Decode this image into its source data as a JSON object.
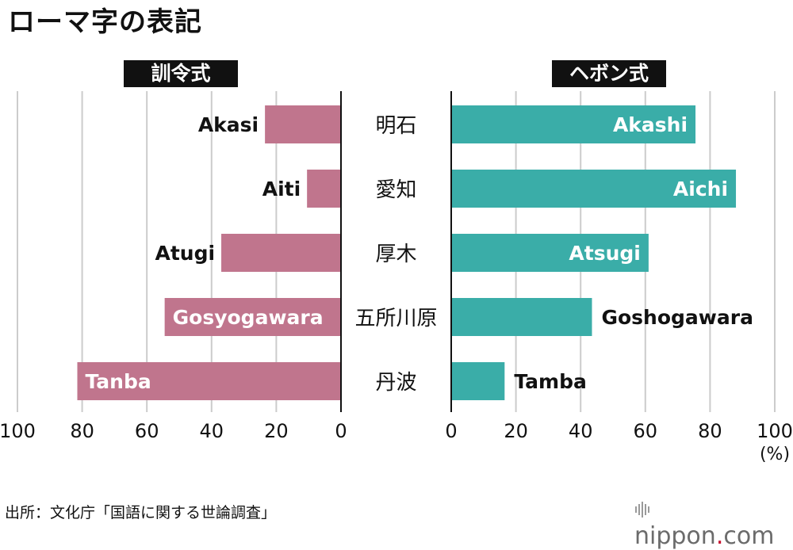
{
  "title": "ローマ字の表記",
  "panels": {
    "left_label": "訓令式",
    "right_label": "ヘボン式"
  },
  "unit": "(%)",
  "source": "出所：文化庁「国語に関する世論調査」",
  "brand": {
    "name": "nippon",
    "dot": ".",
    "suffix": "com"
  },
  "colors": {
    "kunrei": "#c0758d",
    "hepburn": "#3aada8",
    "grid": "#cccccc",
    "axis": "#111111"
  },
  "chart_data": [
    {
      "type": "bar",
      "orientation": "horizontal",
      "direction": "right-to-left",
      "title": "訓令式",
      "categories": [
        "明石",
        "愛知",
        "厚木",
        "五所川原",
        "丹波"
      ],
      "labels": [
        "Akasi",
        "Aiti",
        "Atugi",
        "Gosyogawara",
        "Tanba"
      ],
      "values": [
        23.5,
        10.5,
        37,
        54.5,
        81.5
      ],
      "xlim": [
        0,
        100
      ],
      "ticks": [
        100,
        80,
        60,
        40,
        20,
        0
      ]
    },
    {
      "type": "bar",
      "orientation": "horizontal",
      "direction": "left-to-right",
      "title": "ヘボン式",
      "categories": [
        "明石",
        "愛知",
        "厚木",
        "五所川原",
        "丹波"
      ],
      "labels": [
        "Akashi",
        "Aichi",
        "Atsugi",
        "Goshogawara",
        "Tamba"
      ],
      "values": [
        75.5,
        88,
        61,
        43.5,
        16.5
      ],
      "xlim": [
        0,
        100
      ],
      "ticks": [
        0,
        20,
        40,
        60,
        80,
        100
      ]
    }
  ]
}
